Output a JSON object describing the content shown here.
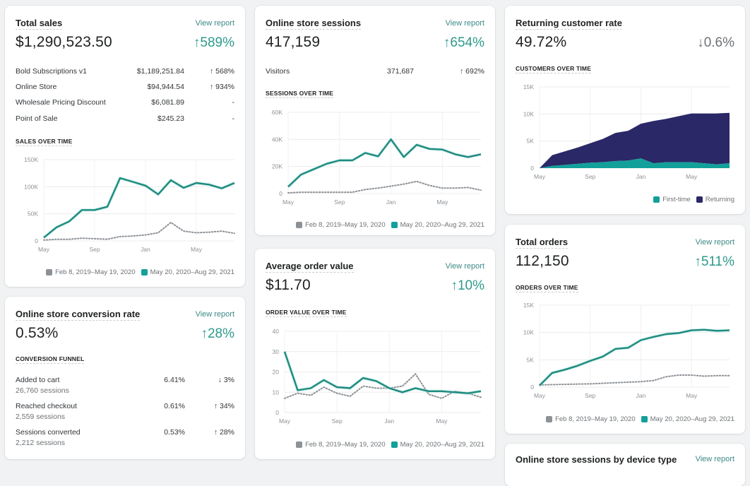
{
  "colors": {
    "accent": "#2e9a8c",
    "line_current": "#1f8a7e",
    "line_previous": "#8c9196",
    "first_time": "#12a09a",
    "returning": "#2a2866",
    "link": "#3d8a86"
  },
  "legend": {
    "previous": "Feb 8, 2019–May 19, 2020",
    "current": "May 20, 2020–Aug 29, 2021"
  },
  "cards": {
    "total_sales": {
      "title": "Total sales",
      "link": "View report",
      "value": "$1,290,523.50",
      "delta": "↑589%",
      "breakdown": [
        {
          "label": "Bold Subscriptions v1",
          "value": "$1,189,251.84",
          "change": "↑ 568%"
        },
        {
          "label": "Online Store",
          "value": "$94,944.54",
          "change": "↑ 934%"
        },
        {
          "label": "Wholesale Pricing Discount",
          "value": "$6,081.89",
          "change": "-"
        },
        {
          "label": "Point of Sale",
          "value": "$245.23",
          "change": "-"
        }
      ],
      "section": "SALES OVER TIME"
    },
    "conversion": {
      "title": "Online store conversion rate",
      "link": "View report",
      "value": "0.53%",
      "delta": "↑28%",
      "section": "CONVERSION FUNNEL",
      "funnel": [
        {
          "label": "Added to cart",
          "sessions": "26,760 sessions",
          "value": "6.41%",
          "change": "↓ 3%"
        },
        {
          "label": "Reached checkout",
          "sessions": "2,559 sessions",
          "value": "0.61%",
          "change": "↑ 34%"
        },
        {
          "label": "Sessions converted",
          "sessions": "2,212 sessions",
          "value": "0.53%",
          "change": "↑ 28%"
        }
      ]
    },
    "sessions": {
      "title": "Online store sessions",
      "link": "View report",
      "value": "417,159",
      "delta": "↑654%",
      "breakdown": [
        {
          "label": "Visitors",
          "value": "371,687",
          "change": "↑ 692%"
        }
      ],
      "section": "SESSIONS OVER TIME"
    },
    "aov": {
      "title": "Average order value",
      "link": "View report",
      "value": "$11.70",
      "delta": "↑10%",
      "section": "ORDER VALUE OVER TIME"
    },
    "returning": {
      "title": "Returning customer rate",
      "value": "49.72%",
      "delta": "↓0.6%",
      "section": "CUSTOMERS OVER TIME",
      "legend_first": "First-time",
      "legend_returning": "Returning"
    },
    "orders": {
      "title": "Total orders",
      "link": "View report",
      "value": "112,150",
      "delta": "↑511%",
      "section": "ORDERS OVER TIME"
    },
    "device": {
      "title": "Online store sessions by device type",
      "link": "View report"
    }
  },
  "chart_data": [
    {
      "id": "sales",
      "type": "line",
      "title": "SALES OVER TIME",
      "x_ticks": [
        "May",
        "Sep",
        "Jan",
        "May"
      ],
      "x_tick_positions": [
        0,
        4,
        8,
        12
      ],
      "y_ticks": [
        "0",
        "50K",
        "100K",
        "150K"
      ],
      "ylim": [
        0,
        150000
      ],
      "grid": true,
      "legend": "bottom-right",
      "series": [
        {
          "name": "May 20, 2020–Aug 29, 2021",
          "style": "solid",
          "values": [
            6000,
            25000,
            36000,
            57000,
            57000,
            63000,
            116000,
            109000,
            102000,
            86000,
            112000,
            98000,
            107000,
            104000,
            97000,
            107000
          ]
        },
        {
          "name": "Feb 8, 2019–May 19, 2020",
          "style": "dotted",
          "values": [
            1500,
            3000,
            3000,
            5000,
            4000,
            3000,
            8000,
            9000,
            11000,
            15000,
            34000,
            18000,
            15000,
            16000,
            18000,
            14000
          ]
        }
      ]
    },
    {
      "id": "sessions",
      "type": "line",
      "title": "SESSIONS OVER TIME",
      "x_ticks": [
        "May",
        "Sep",
        "Jan",
        "May"
      ],
      "x_tick_positions": [
        0,
        4,
        8,
        12
      ],
      "y_ticks": [
        "0",
        "20K",
        "40K",
        "60K"
      ],
      "ylim": [
        0,
        60000
      ],
      "grid": true,
      "legend": "bottom-right",
      "series": [
        {
          "name": "May 20, 2020–Aug 29, 2021",
          "style": "solid",
          "values": [
            5000,
            14000,
            18000,
            22000,
            24500,
            24500,
            30000,
            27500,
            40000,
            27000,
            36000,
            33000,
            32500,
            29000,
            27000,
            29000
          ]
        },
        {
          "name": "Feb 8, 2019–May 19, 2020",
          "style": "dotted",
          "values": [
            500,
            1000,
            1000,
            1000,
            1000,
            1000,
            3000,
            4000,
            5500,
            7000,
            9000,
            6000,
            4000,
            4000,
            4500,
            2500
          ]
        }
      ]
    },
    {
      "id": "aov",
      "type": "line",
      "title": "ORDER VALUE OVER TIME",
      "x_ticks": [
        "May",
        "Sep",
        "Jan",
        "May"
      ],
      "x_tick_positions": [
        0,
        4,
        8,
        12
      ],
      "y_ticks": [
        "0",
        "10",
        "20",
        "30",
        "40"
      ],
      "ylim": [
        0,
        40
      ],
      "grid": true,
      "legend": "bottom-right",
      "series": [
        {
          "name": "May 20, 2020–Aug 29, 2021",
          "style": "solid",
          "values": [
            30,
            11,
            12,
            16,
            12.5,
            12,
            17,
            15.5,
            12,
            10,
            12,
            10.5,
            10.5,
            10,
            9.5,
            10.5
          ]
        },
        {
          "name": "Feb 8, 2019–May 19, 2020",
          "style": "dotted",
          "values": [
            7,
            9.5,
            8.5,
            12.5,
            9.5,
            8,
            13,
            12,
            12,
            13,
            19,
            9,
            7,
            10.5,
            9.5,
            7.5
          ]
        }
      ]
    },
    {
      "id": "customers",
      "type": "area",
      "title": "CUSTOMERS OVER TIME",
      "x_ticks": [
        "May",
        "Sep",
        "Jan",
        "May"
      ],
      "x_tick_positions": [
        0,
        4,
        8,
        12
      ],
      "y_ticks": [
        "0",
        "5K",
        "10K",
        "15K"
      ],
      "ylim": [
        0,
        15000
      ],
      "grid": true,
      "stacked": true,
      "legend": "bottom-right",
      "series": [
        {
          "name": "First-time",
          "values": [
            0,
            400,
            600,
            800,
            1000,
            1100,
            1300,
            1400,
            1800,
            900,
            1100,
            1100,
            1100,
            900,
            700,
            900
          ]
        },
        {
          "name": "Returning",
          "values": [
            0,
            2000,
            2500,
            3000,
            3600,
            4300,
            5200,
            5500,
            6400,
            7800,
            8000,
            8500,
            9000,
            9200,
            9400,
            9300
          ]
        }
      ]
    },
    {
      "id": "orders",
      "type": "line",
      "title": "ORDERS OVER TIME",
      "x_ticks": [
        "May",
        "Sep",
        "Jan",
        "May"
      ],
      "x_tick_positions": [
        0,
        4,
        8,
        12
      ],
      "y_ticks": [
        "0",
        "5K",
        "10K",
        "15K"
      ],
      "ylim": [
        0,
        15000
      ],
      "grid": true,
      "legend": "bottom-right",
      "series": [
        {
          "name": "May 20, 2020–Aug 29, 2021",
          "style": "solid",
          "values": [
            300,
            2600,
            3200,
            3900,
            4800,
            5600,
            7000,
            7200,
            8600,
            9200,
            9700,
            9900,
            10400,
            10500,
            10300,
            10400
          ]
        },
        {
          "name": "Feb 8, 2019–May 19, 2020",
          "style": "dotted",
          "values": [
            400,
            450,
            500,
            550,
            600,
            700,
            800,
            900,
            1000,
            1200,
            1900,
            2200,
            2200,
            2000,
            2100,
            2100
          ]
        }
      ]
    }
  ]
}
